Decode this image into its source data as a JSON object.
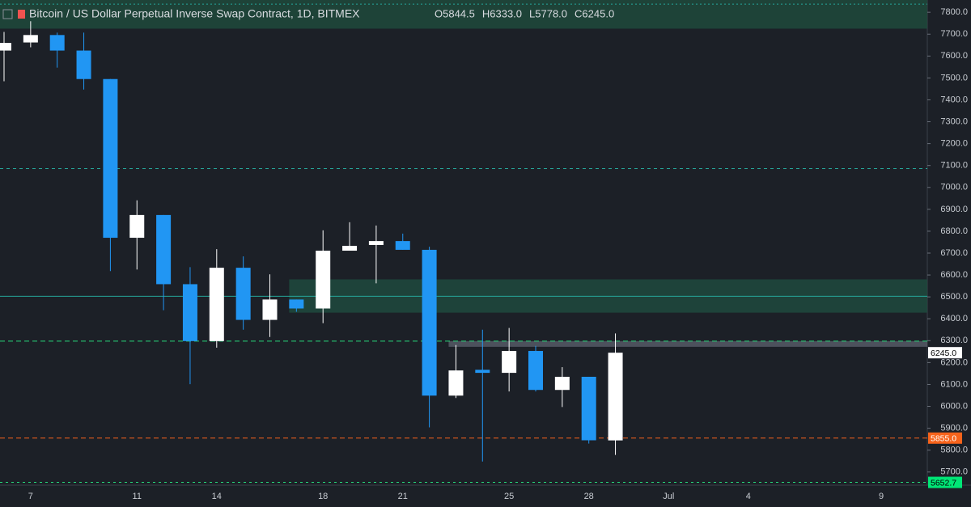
{
  "chart_data": {
    "type": "candlestick",
    "title": "Bitcoin / US Dollar Perpetual Inverse Swap Contract, 1D, BITMEX",
    "ohlc_labels": [
      "O5844.5",
      "H6333.0",
      "L5778.0",
      "C6245.0"
    ],
    "categories": [
      null,
      "7",
      null,
      null,
      null,
      "11",
      null,
      null,
      "14",
      null,
      null,
      null,
      "18",
      null,
      null,
      "21",
      null,
      null,
      null,
      "25",
      null,
      null,
      "28",
      null,
      null,
      "Jul",
      null,
      null,
      "4",
      null,
      null,
      null,
      null,
      "9",
      null
    ],
    "open": [
      7625,
      7662,
      7696,
      7625,
      7495,
      6770,
      6874,
      6558,
      6298,
      6633,
      6395,
      6488,
      6447,
      6711,
      6737,
      6755,
      6715,
      6049,
      6167,
      6153,
      6253,
      6075,
      6135,
      5844.5,
      null,
      null,
      null,
      null,
      null,
      null,
      null,
      null,
      null,
      null,
      null
    ],
    "high": [
      7710,
      7759,
      7707,
      7707,
      7495,
      6941,
      6874,
      6636,
      6718,
      6685,
      6603,
      6488,
      6804,
      6841,
      6826,
      6789,
      6729,
      6280,
      6350,
      6358,
      6276,
      6179,
      6135,
      6333,
      null,
      null,
      null,
      null,
      null,
      null,
      null,
      null,
      null,
      null,
      null
    ],
    "low": [
      7485,
      7640,
      7547,
      7447,
      6618,
      6625,
      6439,
      6101,
      6268,
      6350,
      6317,
      6432,
      6380,
      6711,
      6562,
      6715,
      5904,
      6038,
      5748,
      6068,
      6068,
      5997,
      5830,
      5778,
      null,
      null,
      null,
      null,
      null,
      null,
      null,
      null,
      null,
      null,
      null
    ],
    "close": [
      7660,
      7696,
      7625,
      7495,
      6770,
      6874,
      6558,
      6298,
      6633,
      6395,
      6488,
      6447,
      6711,
      6733,
      6755,
      6715,
      6049,
      6164,
      6153,
      6253,
      6075,
      6135,
      5845,
      6245,
      null,
      null,
      null,
      null,
      null,
      null,
      null,
      null,
      null,
      null,
      null
    ],
    "up_color": "#ffffff",
    "down_color": "#2196f3",
    "ylim": [
      5640,
      7856
    ],
    "yticks": [
      {
        "value": 5700,
        "label": "5700.0"
      },
      {
        "value": 5800,
        "label": "5800.0"
      },
      {
        "value": 5900,
        "label": "5900.0"
      },
      {
        "value": 6000,
        "label": "6000.0"
      },
      {
        "value": 6100,
        "label": "6100.0"
      },
      {
        "value": 6200,
        "label": "6200.0"
      },
      {
        "value": 6300,
        "label": "6300.0"
      },
      {
        "value": 6400,
        "label": "6400.0"
      },
      {
        "value": 6500,
        "label": "6500.0"
      },
      {
        "value": 6600,
        "label": "6600.0"
      },
      {
        "value": 6700,
        "label": "6700.0"
      },
      {
        "value": 6800,
        "label": "6800.0"
      },
      {
        "value": 6900,
        "label": "6900.0"
      },
      {
        "value": 7000,
        "label": "7000.0"
      },
      {
        "value": 7100,
        "label": "7100.0"
      },
      {
        "value": 7200,
        "label": "7200.0"
      },
      {
        "value": 7300,
        "label": "7300.0"
      },
      {
        "value": 7400,
        "label": "7400.0"
      },
      {
        "value": 7500,
        "label": "7500.0"
      },
      {
        "value": 7600,
        "label": "7600.0"
      },
      {
        "value": 7700,
        "label": "7700.0"
      },
      {
        "value": 7800,
        "label": "7800.0"
      }
    ],
    "zones": [
      {
        "from": 7725,
        "to": 7856,
        "start": 0,
        "color": "#1e4a3c"
      },
      {
        "from": 6428,
        "to": 6580,
        "start": 11,
        "color": "#1f4a3e"
      },
      {
        "from": 6272,
        "to": 6298,
        "start": 17,
        "color": "#555b66"
      }
    ],
    "levels": [
      {
        "value": 7837,
        "color": "#26a69a",
        "dash": "2 3"
      },
      {
        "value": 7086,
        "color": "#26a69a",
        "dash": "4 4"
      },
      {
        "value": 6503,
        "color": "#26a69a",
        "dash": "0"
      },
      {
        "value": 6298,
        "color": "#26d67a",
        "dash": "6 4"
      },
      {
        "value": 5855,
        "color": "#f7631b",
        "dash": "6 4"
      },
      {
        "value": 5652.7,
        "color": "#26d67a",
        "dash": "3 4"
      }
    ],
    "price_labels": [
      {
        "value": 6245,
        "label": "6245.0",
        "color": "#ffffff",
        "text_color": "#000000"
      },
      {
        "value": 5855,
        "label": "5855.0",
        "color": "#f7631b",
        "text_color": "#ffffff"
      },
      {
        "value": 5652.7,
        "label": "5652.7",
        "color": "#00e676",
        "text_color": "#000000"
      }
    ]
  }
}
